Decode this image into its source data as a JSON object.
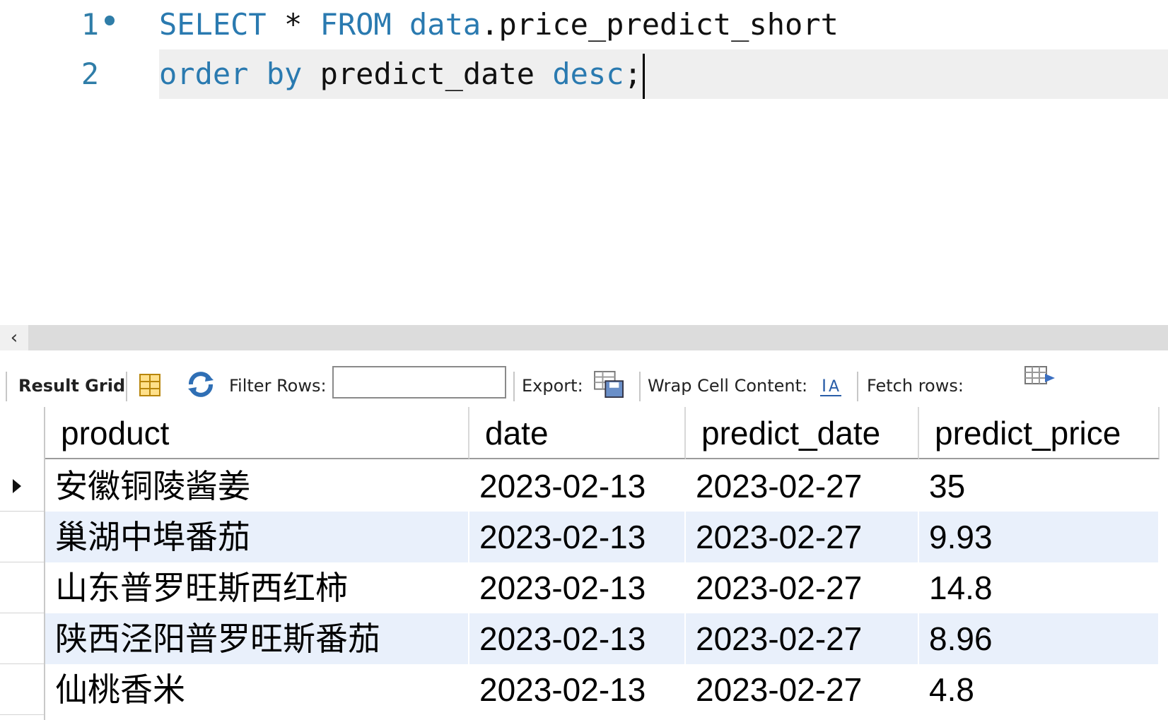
{
  "editor": {
    "lines": [
      {
        "number": "1",
        "keyword1": "SELECT",
        "star": " * ",
        "keyword2": "FROM",
        "schema": " data",
        "rest": ".price_predict_short"
      },
      {
        "number": "2",
        "keyword1": "order",
        "kw2": "by",
        "ident": "predict_date",
        "kw3": "desc",
        "semi": ";"
      }
    ]
  },
  "toolbar": {
    "result_grid": "Result Grid",
    "filter_rows": "Filter Rows:",
    "filter_value": "",
    "export": "Export:",
    "wrap": "Wrap Cell Content:",
    "fetch": "Fetch rows:"
  },
  "grid": {
    "columns": [
      "product",
      "date",
      "predict_date",
      "predict_price"
    ],
    "rows": [
      [
        "安徽铜陵酱姜",
        "2023-02-13",
        "2023-02-27",
        "35"
      ],
      [
        "巢湖中埠番茄",
        "2023-02-13",
        "2023-02-27",
        "9.93"
      ],
      [
        "山东普罗旺斯西红柿",
        "2023-02-13",
        "2023-02-27",
        "14.8"
      ],
      [
        "陕西泾阳普罗旺斯番茄",
        "2023-02-13",
        "2023-02-27",
        "8.96"
      ],
      [
        "仙桃香米",
        "2023-02-13",
        "2023-02-27",
        "4.8"
      ]
    ]
  },
  "colors": {
    "keyword": "#2a7ab0",
    "row_alt": "#e9f0fb",
    "current_line": "#efefef"
  }
}
